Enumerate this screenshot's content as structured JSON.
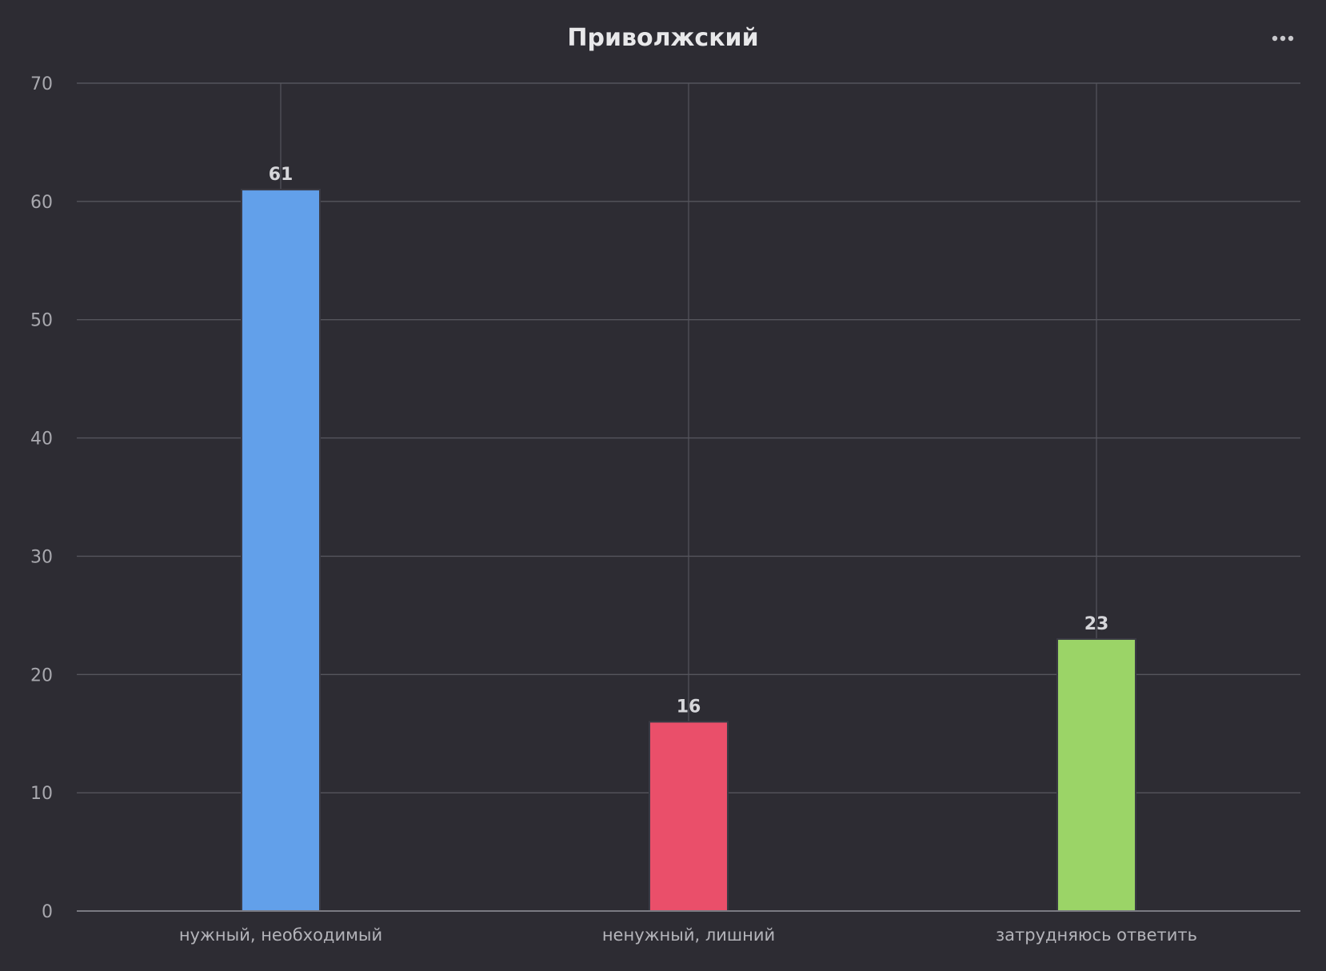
{
  "chart_data": {
    "type": "bar",
    "title": "Приволжский",
    "xlabel": "",
    "ylabel": "",
    "categories": [
      "нужный, необходимый",
      "ненужный, лишний",
      "затрудняюсь ответить"
    ],
    "values": [
      61,
      16,
      23
    ],
    "data_labels": [
      "61",
      "16",
      "23"
    ],
    "colors": [
      "#62a0ea",
      "#ea4f6a",
      "#9bd467"
    ],
    "ylim": [
      0,
      70
    ],
    "yticks": [
      0,
      10,
      20,
      30,
      40,
      50,
      60,
      70
    ],
    "grid": true,
    "legend": "none"
  },
  "toolbar": {
    "menu_icon": "more-horizontal-icon"
  }
}
